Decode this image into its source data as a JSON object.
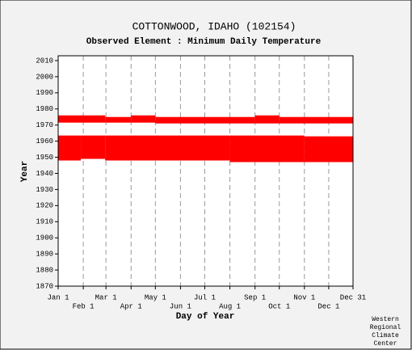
{
  "chart_data": {
    "type": "range",
    "title": "COTTONWOOD, IDAHO   (102154)",
    "subtitle": "Observed Element : Minimum Daily Temperature",
    "y_label": "Year",
    "x_label": "Day of Year",
    "credit": [
      "Western",
      "Regional",
      "Climate",
      "Center"
    ],
    "color": "#ff0000",
    "xlim": [
      1,
      365
    ],
    "ylim": [
      1870,
      2013
    ],
    "xticks": [
      {
        "value": 1,
        "label": "Jan 1"
      },
      {
        "value": 32,
        "label": "Feb 1"
      },
      {
        "value": 60,
        "label": "Mar 1"
      },
      {
        "value": 91,
        "label": "Apr 1"
      },
      {
        "value": 121,
        "label": "May 1"
      },
      {
        "value": 152,
        "label": "Jun 1"
      },
      {
        "value": 182,
        "label": "Jul 1"
      },
      {
        "value": 213,
        "label": "Aug 1"
      },
      {
        "value": 244,
        "label": "Sep 1"
      },
      {
        "value": 274,
        "label": "Oct 1"
      },
      {
        "value": 305,
        "label": "Nov 1"
      },
      {
        "value": 335,
        "label": "Dec 1"
      },
      {
        "value": 365,
        "label": "Dec 31"
      }
    ],
    "yticks": [
      1870,
      1880,
      1890,
      1900,
      1910,
      1920,
      1930,
      1940,
      1950,
      1960,
      1970,
      1980,
      1990,
      2000,
      2010
    ],
    "grid": true,
    "blocks": [
      {
        "days": [
          1,
          59
        ],
        "years": [
          1971.5,
          1976
        ]
      },
      {
        "days": [
          59,
          91
        ],
        "years": [
          1971.5,
          1975
        ]
      },
      {
        "days": [
          91,
          121
        ],
        "years": [
          1971.5,
          1976
        ]
      },
      {
        "days": [
          121,
          244
        ],
        "years": [
          1971,
          1975
        ]
      },
      {
        "days": [
          244,
          274
        ],
        "years": [
          1971,
          1976
        ]
      },
      {
        "days": [
          274,
          365
        ],
        "years": [
          1971,
          1975
        ]
      },
      {
        "days": [
          1,
          29
        ],
        "years": [
          1948,
          1963.5
        ]
      },
      {
        "days": [
          29,
          59
        ],
        "years": [
          1949,
          1963.5
        ]
      },
      {
        "days": [
          59,
          213
        ],
        "years": [
          1948,
          1963.5
        ]
      },
      {
        "days": [
          213,
          305
        ],
        "years": [
          1947,
          1963.5
        ]
      },
      {
        "days": [
          305,
          365
        ],
        "years": [
          1947,
          1963
        ]
      }
    ]
  }
}
